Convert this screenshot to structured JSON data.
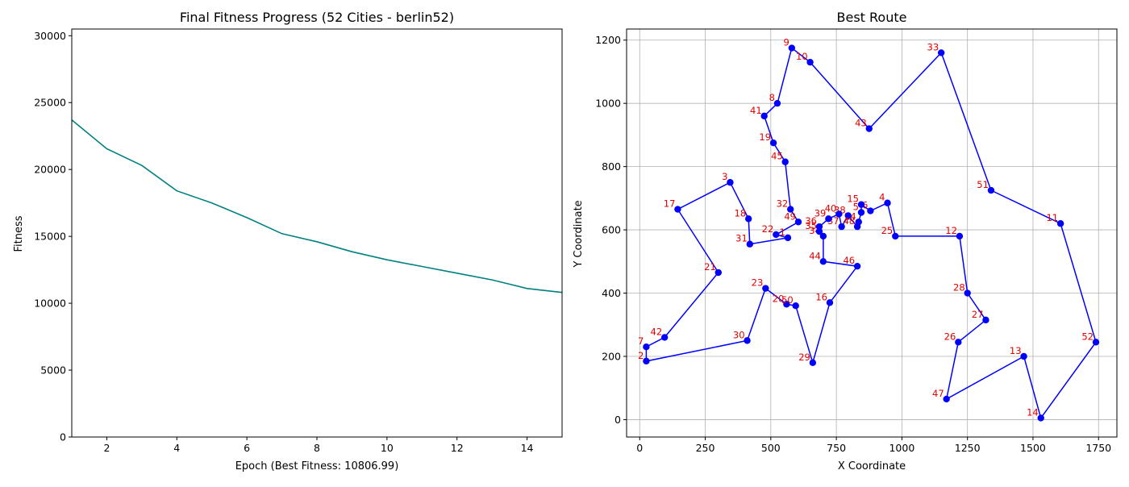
{
  "figure_panels": [
    {
      "title": "Final Fitness Progress (52 Cities - berlin52)",
      "xlabel": "Epoch (Best Fitness: 10806.99)",
      "ylabel": "Fitness"
    },
    {
      "title": "Best Route",
      "xlabel": "X Coordinate",
      "ylabel": "Y Coordinate"
    }
  ],
  "chart_data": [
    {
      "type": "line",
      "title": "Final Fitness Progress (52 Cities - berlin52)",
      "xlabel": "Epoch (Best Fitness: 10806.99)",
      "ylabel": "Fitness",
      "xlim": [
        1,
        15
      ],
      "ylim": [
        0,
        30500
      ],
      "x_ticks": [
        2,
        4,
        6,
        8,
        10,
        12,
        14
      ],
      "y_ticks": [
        0,
        5000,
        10000,
        15000,
        20000,
        25000,
        30000
      ],
      "grid": false,
      "line_color": "#008080",
      "x": [
        1,
        2,
        3,
        4,
        5,
        6,
        7,
        8,
        9,
        10,
        11,
        12,
        13,
        14,
        15
      ],
      "y": [
        23700,
        21550,
        20300,
        18400,
        17500,
        16400,
        15200,
        14600,
        13850,
        13250,
        12750,
        12250,
        11750,
        11100,
        10807
      ]
    },
    {
      "type": "line",
      "title": "Best Route",
      "xlabel": "X Coordinate",
      "ylabel": "Y Coordinate",
      "xlim": [
        -50,
        1820
      ],
      "ylim": [
        -55,
        1235
      ],
      "x_ticks": [
        0,
        250,
        500,
        750,
        1000,
        1250,
        1500,
        1750
      ],
      "y_ticks": [
        0,
        200,
        400,
        600,
        800,
        1000,
        1200
      ],
      "grid": true,
      "line_color": "#0000ff",
      "marker_color": "#0000ff",
      "label_color": "#e00000",
      "cities": [
        {
          "label": "1",
          "x": 565,
          "y": 575
        },
        {
          "label": "2",
          "x": 25,
          "y": 185
        },
        {
          "label": "3",
          "x": 345,
          "y": 750
        },
        {
          "label": "4",
          "x": 945,
          "y": 685
        },
        {
          "label": "5",
          "x": 845,
          "y": 655
        },
        {
          "label": "6",
          "x": 880,
          "y": 660
        },
        {
          "label": "7",
          "x": 25,
          "y": 230
        },
        {
          "label": "8",
          "x": 525,
          "y": 1000
        },
        {
          "label": "9",
          "x": 580,
          "y": 1175
        },
        {
          "label": "10",
          "x": 650,
          "y": 1130
        },
        {
          "label": "11",
          "x": 1605,
          "y": 620
        },
        {
          "label": "12",
          "x": 1220,
          "y": 580
        },
        {
          "label": "13",
          "x": 1465,
          "y": 200
        },
        {
          "label": "14",
          "x": 1530,
          "y": 5
        },
        {
          "label": "15",
          "x": 845,
          "y": 680
        },
        {
          "label": "16",
          "x": 725,
          "y": 370
        },
        {
          "label": "17",
          "x": 145,
          "y": 665
        },
        {
          "label": "18",
          "x": 415,
          "y": 635
        },
        {
          "label": "19",
          "x": 510,
          "y": 875
        },
        {
          "label": "20",
          "x": 560,
          "y": 365
        },
        {
          "label": "21",
          "x": 300,
          "y": 465
        },
        {
          "label": "22",
          "x": 520,
          "y": 585
        },
        {
          "label": "23",
          "x": 480,
          "y": 415
        },
        {
          "label": "24",
          "x": 835,
          "y": 625
        },
        {
          "label": "25",
          "x": 975,
          "y": 580
        },
        {
          "label": "26",
          "x": 1215,
          "y": 245
        },
        {
          "label": "27",
          "x": 1320,
          "y": 315
        },
        {
          "label": "28",
          "x": 1250,
          "y": 400
        },
        {
          "label": "29",
          "x": 660,
          "y": 180
        },
        {
          "label": "30",
          "x": 410,
          "y": 250
        },
        {
          "label": "31",
          "x": 420,
          "y": 555
        },
        {
          "label": "32",
          "x": 575,
          "y": 665
        },
        {
          "label": "33",
          "x": 1150,
          "y": 1160
        },
        {
          "label": "34",
          "x": 700,
          "y": 580
        },
        {
          "label": "35",
          "x": 685,
          "y": 595
        },
        {
          "label": "36",
          "x": 685,
          "y": 610
        },
        {
          "label": "37",
          "x": 770,
          "y": 610
        },
        {
          "label": "38",
          "x": 795,
          "y": 645
        },
        {
          "label": "39",
          "x": 720,
          "y": 635
        },
        {
          "label": "40",
          "x": 760,
          "y": 650
        },
        {
          "label": "41",
          "x": 475,
          "y": 960
        },
        {
          "label": "42",
          "x": 95,
          "y": 260
        },
        {
          "label": "43",
          "x": 875,
          "y": 920
        },
        {
          "label": "44",
          "x": 700,
          "y": 500
        },
        {
          "label": "45",
          "x": 555,
          "y": 815
        },
        {
          "label": "46",
          "x": 830,
          "y": 485
        },
        {
          "label": "47",
          "x": 1170,
          "y": 65
        },
        {
          "label": "48",
          "x": 830,
          "y": 610
        },
        {
          "label": "49",
          "x": 605,
          "y": 625
        },
        {
          "label": "50",
          "x": 595,
          "y": 360
        },
        {
          "label": "51",
          "x": 1340,
          "y": 725
        },
        {
          "label": "52",
          "x": 1740,
          "y": 245
        }
      ],
      "route": [
        1,
        22,
        49,
        32,
        45,
        19,
        41,
        8,
        9,
        10,
        43,
        33,
        51,
        11,
        52,
        14,
        13,
        47,
        26,
        27,
        28,
        12,
        25,
        4,
        6,
        15,
        5,
        24,
        48,
        38,
        37,
        40,
        39,
        36,
        35,
        34,
        44,
        46,
        16,
        29,
        50,
        20,
        23,
        30,
        2,
        7,
        42,
        21,
        17,
        3,
        18,
        31,
        1
      ]
    }
  ]
}
